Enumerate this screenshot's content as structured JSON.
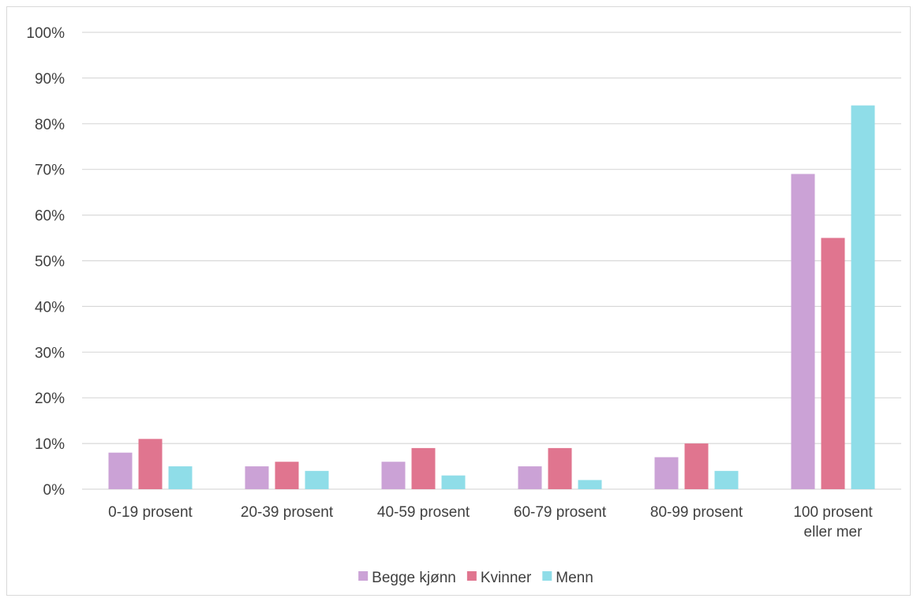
{
  "chart_data": {
    "type": "bar",
    "categories": [
      [
        "0-19 prosent"
      ],
      [
        "20-39  prosent"
      ],
      [
        "40-59 prosent"
      ],
      [
        "60-79 prosent"
      ],
      [
        "80-99 prosent"
      ],
      [
        "100 prosent",
        "eller mer"
      ]
    ],
    "series": [
      {
        "name": "Begge kjønn",
        "color": "#cba2d6",
        "values": [
          8,
          5,
          6,
          5,
          7,
          69
        ]
      },
      {
        "name": "Kvinner",
        "color": "#e0758f",
        "values": [
          11,
          6,
          9,
          9,
          10,
          55
        ]
      },
      {
        "name": "Menn",
        "color": "#8fdde8",
        "values": [
          5,
          4,
          3,
          2,
          4,
          84
        ]
      }
    ],
    "ylim": [
      0,
      100
    ],
    "yticks": [
      "0%",
      "10%",
      "20%",
      "30%",
      "40%",
      "50%",
      "60%",
      "70%",
      "80%",
      "90%",
      "100%"
    ],
    "grid": true,
    "legend_position": "bottom",
    "title": "",
    "xlabel": "",
    "ylabel": ""
  }
}
